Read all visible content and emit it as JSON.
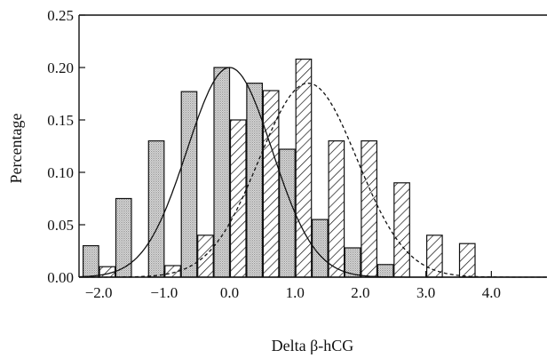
{
  "chart_data": {
    "type": "bar",
    "title": "",
    "xlabel": "Delta β-hCG",
    "ylabel": "Percentage",
    "xlim": [
      -2.3,
      4.85
    ],
    "ylim": [
      0,
      0.25
    ],
    "x_ticks": [
      -2.0,
      -1.0,
      0.0,
      1.0,
      2.0,
      3.0,
      4.0
    ],
    "x_tick_labels": [
      "−2.0",
      "−1.0",
      "0.0",
      "1.0",
      "2.0",
      "3.0",
      "4.0"
    ],
    "y_ticks": [
      0,
      0.05,
      0.1,
      0.15,
      0.2,
      0.25
    ],
    "y_tick_labels": [
      "0.00",
      "0.05",
      "0.10",
      "0.15",
      "0.20",
      "0.25"
    ],
    "grid": false,
    "legend": "none",
    "bin_centers": [
      -2.0,
      -1.5,
      -1.0,
      -0.5,
      0.0,
      0.5,
      1.0,
      1.5,
      2.0,
      2.5,
      3.0,
      3.5
    ],
    "series": [
      {
        "style": "dotted-gray",
        "values": [
          0.03,
          0.075,
          0.13,
          0.177,
          0.2,
          0.185,
          0.122,
          0.055,
          0.028,
          0.012,
          0.0,
          0.0
        ]
      },
      {
        "style": "hatched",
        "values": [
          0.01,
          0.0,
          0.011,
          0.04,
          0.15,
          0.178,
          0.208,
          0.13,
          0.13,
          0.09,
          0.04,
          0.032
        ]
      }
    ],
    "curves": [
      {
        "style": "solid",
        "kind": "normal",
        "mean": 0.0,
        "sd": 0.65,
        "peak": 0.2
      },
      {
        "style": "dashed",
        "kind": "normal",
        "mean": 1.2,
        "sd": 0.75,
        "peak": 0.185
      }
    ]
  }
}
